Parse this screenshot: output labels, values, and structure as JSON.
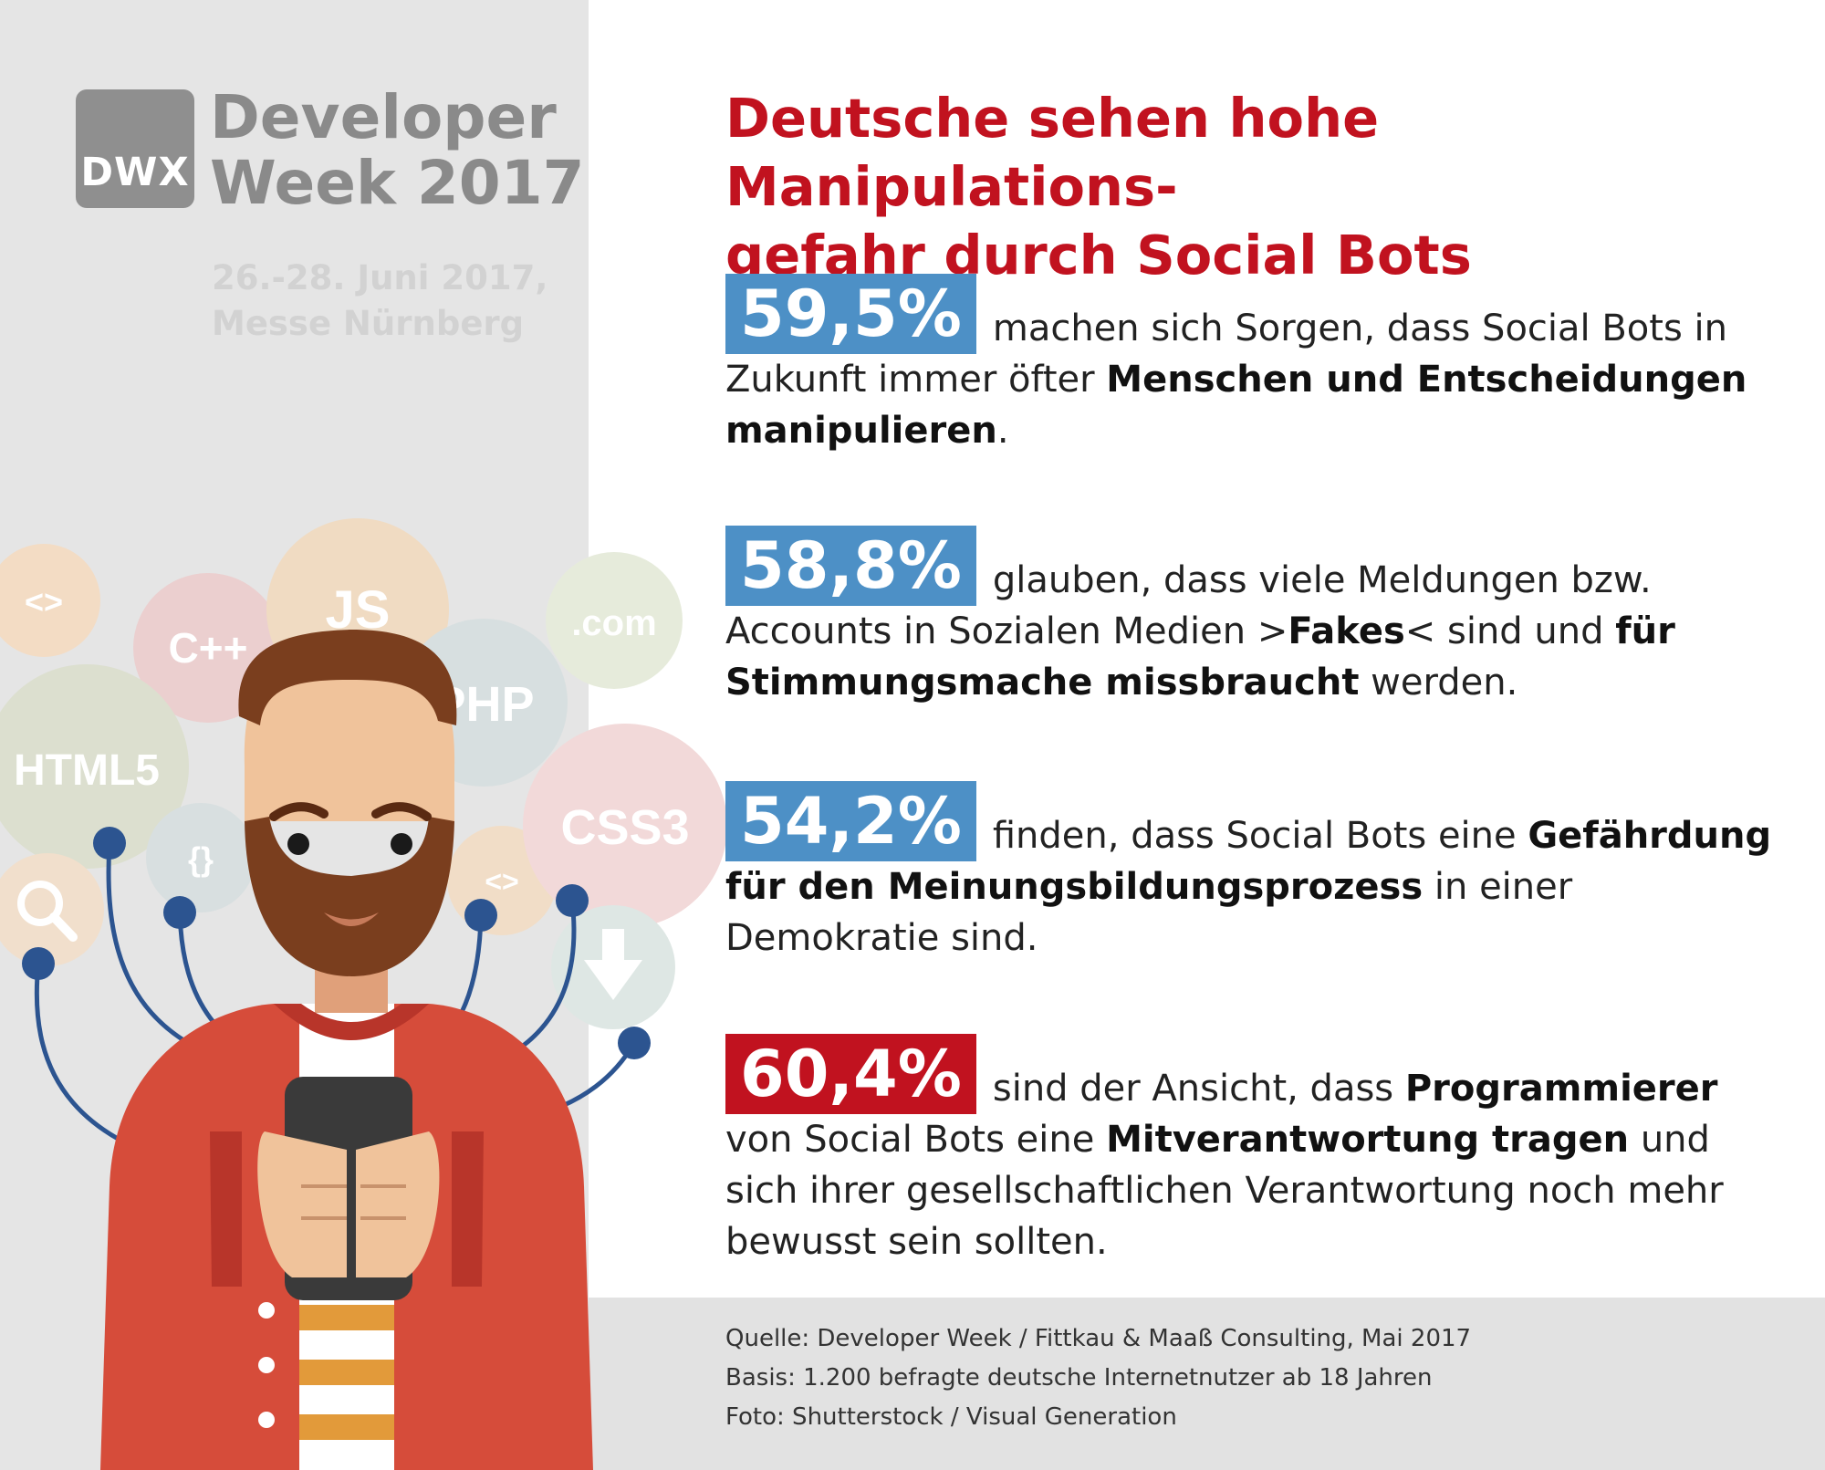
{
  "logo": {
    "badge_text": "DWX",
    "title_line1": "Developer",
    "title_line2": "Week 2017",
    "date": "26.-28. Juni 2017,",
    "venue": "Messe Nürnberg"
  },
  "bubbles": [
    "<>",
    "C++",
    "JS",
    ".com",
    "PHP",
    "HTML5",
    "{}",
    "<>",
    "CSS3"
  ],
  "headline": {
    "line1": "Deutsche sehen hohe Manipulations-",
    "line2": "gefahr durch Social Bots"
  },
  "stats": [
    {
      "value": "59,5%",
      "segments": [
        {
          "text": "machen sich Sorgen, dass Social Bots in Zukunft immer öfter ",
          "bold": false
        },
        {
          "text": "Menschen und Entscheidungen manipulieren",
          "bold": true
        },
        {
          "text": ".",
          "bold": false
        }
      ]
    },
    {
      "value": "58,8%",
      "segments": [
        {
          "text": "glauben, dass viele Meldungen bzw. Accounts in Sozialen Medien >",
          "bold": false
        },
        {
          "text": "Fakes",
          "bold": true
        },
        {
          "text": "< sind und ",
          "bold": false
        },
        {
          "text": "für Stimmungsmache missbraucht",
          "bold": true
        },
        {
          "text": " werden.",
          "bold": false
        }
      ]
    },
    {
      "value": "54,2%",
      "segments": [
        {
          "text": "finden, dass Social Bots eine ",
          "bold": false
        },
        {
          "text": "Gefährdung für den Meinungsbildungsprozess",
          "bold": true
        },
        {
          "text": " in einer Demokratie sind.",
          "bold": false
        }
      ]
    },
    {
      "value": "60,4%",
      "segments": [
        {
          "text": "sind der Ansicht, dass ",
          "bold": false
        },
        {
          "text": "Programmierer",
          "bold": true
        },
        {
          "text": " von Social Bots eine ",
          "bold": false
        },
        {
          "text": "Mitverantwortung tragen",
          "bold": true
        },
        {
          "text": " und sich ihrer gesellschaftlichen Verantwortung noch mehr bewusst sein sollten.",
          "bold": false
        }
      ]
    }
  ],
  "source": {
    "line1": "Quelle: Developer Week / Fittkau & Maaß Consulting, Mai 2017",
    "line2": "Basis: 1.200 befragte deutsche Internetnutzer ab 18 Jahren",
    "line3": "Foto: Shutterstock / Visual Generation"
  },
  "colors": {
    "headline_red": "#c1121f",
    "badge_blue": "#4d90c6",
    "badge_red": "#c1121f",
    "panel_grey": "#e5e5e5"
  }
}
